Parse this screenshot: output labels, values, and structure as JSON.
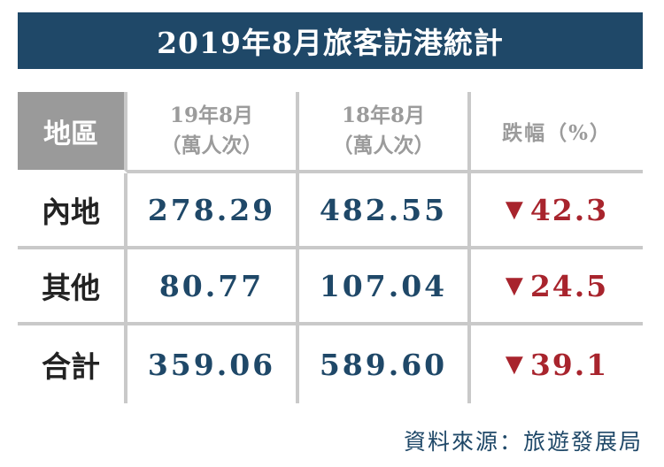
{
  "title": "2019年8月旅客訪港統計",
  "chart_data": {
    "type": "table",
    "title": "2019年8月旅客訪港統計",
    "headers": {
      "region": "地區",
      "col1_line1": "19年8月",
      "col1_line2": "（萬人次）",
      "col2_line1": "18年8月",
      "col2_line2": "（萬人次）",
      "col3": "跌幅（%）"
    },
    "rows": [
      {
        "region": "內地",
        "aug2019": "278.29",
        "aug2018": "482.55",
        "change": "42.3"
      },
      {
        "region": "其他",
        "aug2019": "80.77",
        "aug2018": "107.04",
        "change": "24.5"
      },
      {
        "region": "合計",
        "aug2019": "359.06",
        "aug2018": "589.60",
        "change": "39.1"
      }
    ],
    "change_symbol": "▼"
  },
  "colors": {
    "title_bg": "#1f4868",
    "number": "#1f4868",
    "decline": "#a8242d",
    "header_text": "#9b9b9b",
    "corner_bg": "#9a9a9a"
  },
  "source": "資料來源：旅遊發展局"
}
